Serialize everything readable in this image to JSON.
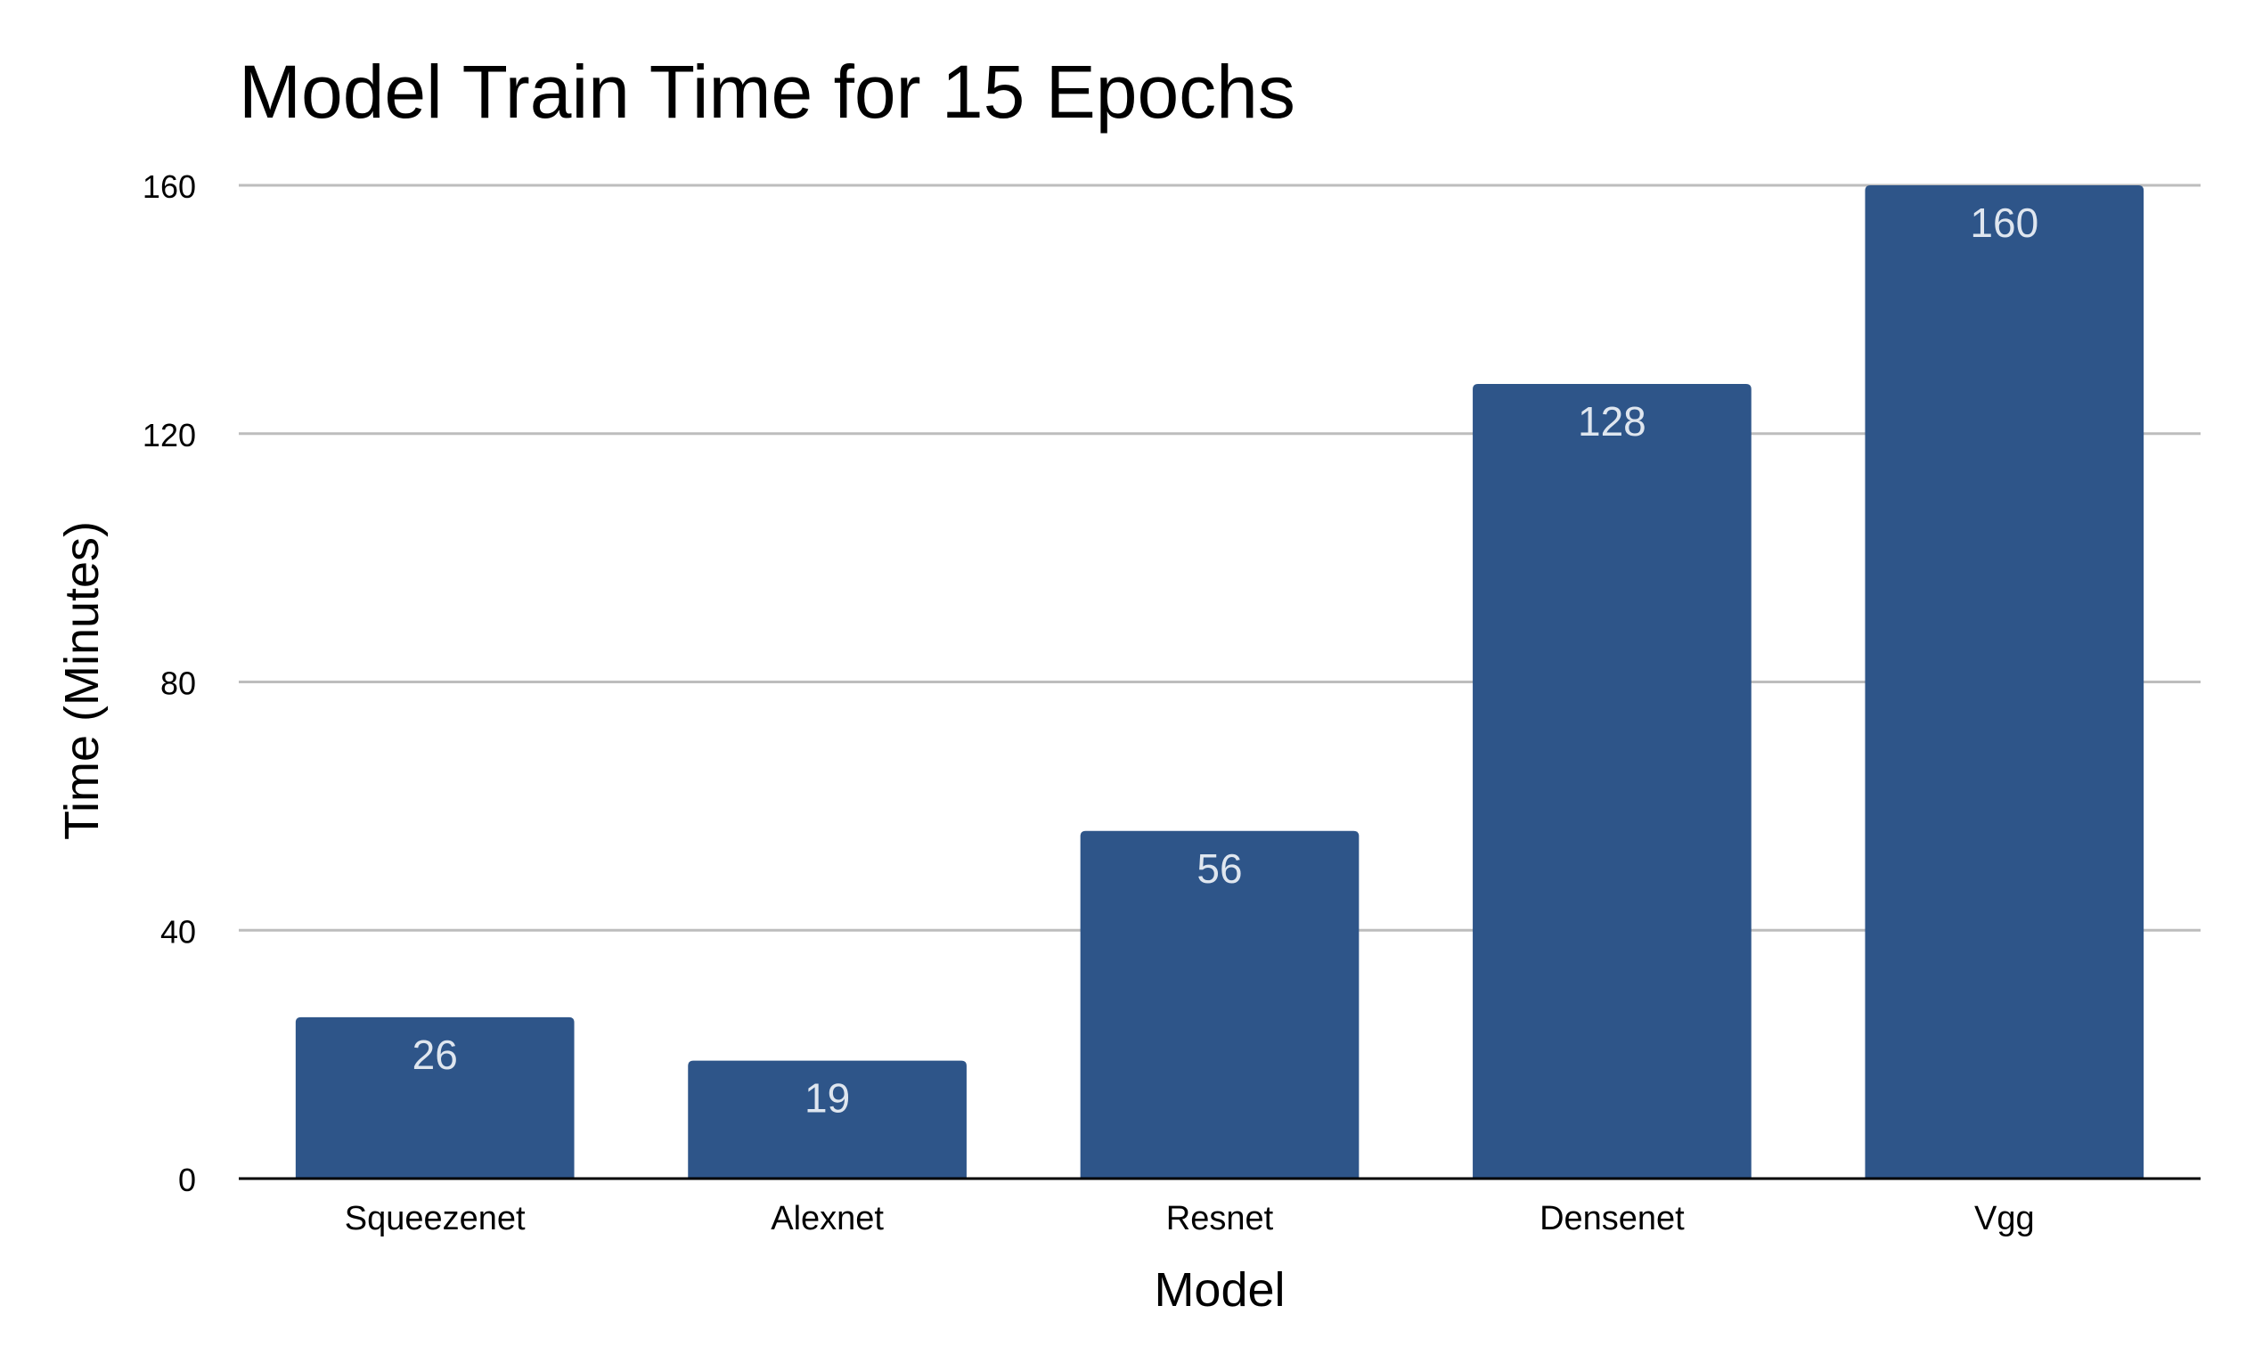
{
  "chart_data": {
    "type": "bar",
    "title": "Model Train Time for 15 Epochs",
    "xlabel": "Model",
    "ylabel": "Time (Minutes)",
    "categories": [
      "Squeezenet",
      "Alexnet",
      "Resnet",
      "Densenet",
      "Vgg"
    ],
    "values": [
      26,
      19,
      56,
      128,
      160
    ],
    "data_labels": [
      "26",
      "19",
      "56",
      "128",
      "160"
    ],
    "yticks": [
      0,
      40,
      80,
      120,
      160
    ],
    "ytick_labels": [
      "0",
      "40",
      "80",
      "120",
      "160"
    ],
    "ylim": [
      0,
      160
    ],
    "grid": true,
    "legend": "none"
  },
  "colors": {
    "bar": "#2e5589",
    "grid": "#bdbdbd",
    "axis": "#000000",
    "data_label": "#dfe6ef",
    "text": "#000000",
    "background": "#ffffff"
  }
}
